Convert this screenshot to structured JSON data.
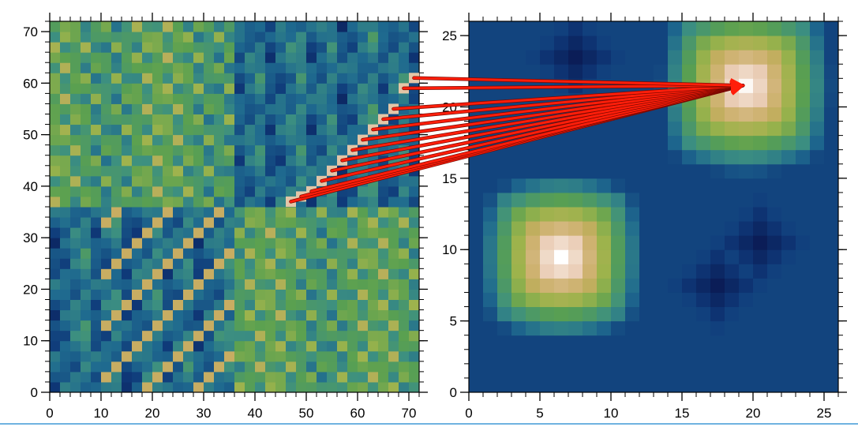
{
  "chart_data": [
    {
      "type": "heatmap",
      "title": "",
      "xlabel": "",
      "ylabel": "",
      "xlim": [
        0,
        72
      ],
      "ylim": [
        0,
        72
      ],
      "x_ticks": [
        "0",
        "10",
        "20",
        "30",
        "40",
        "50",
        "60",
        "70"
      ],
      "y_ticks": [
        "0",
        "10",
        "20",
        "30",
        "40",
        "50",
        "60",
        "70"
      ],
      "x_minor_step": 2,
      "y_minor_step": 2,
      "cell_size": 2,
      "description_blocks": {
        "block_size": 36,
        "layout": "2x2 blocks; bottom-left and top-right are greenish (higher values), top-left and bottom-right are blue (lower values)"
      },
      "colormap": [
        "#0a1850",
        "#0f3a7a",
        "#1f6a8f",
        "#3d9080",
        "#5aa050",
        "#9cb34c",
        "#c8ad62",
        "#e8c9b0",
        "#ffffff"
      ],
      "highlight_cells": [
        {
          "x": 47,
          "y": 37
        },
        {
          "x": 49,
          "y": 38
        },
        {
          "x": 51,
          "y": 39
        },
        {
          "x": 53,
          "y": 41
        },
        {
          "x": 55,
          "y": 43
        },
        {
          "x": 57,
          "y": 45
        },
        {
          "x": 59,
          "y": 47
        },
        {
          "x": 61,
          "y": 49
        },
        {
          "x": 63,
          "y": 51
        },
        {
          "x": 65,
          "y": 53
        },
        {
          "x": 67,
          "y": 55
        },
        {
          "x": 69,
          "y": 59
        },
        {
          "x": 71,
          "y": 61
        }
      ]
    },
    {
      "type": "heatmap",
      "title": "",
      "xlabel": "",
      "ylabel": "",
      "xlim": [
        0,
        26
      ],
      "ylim": [
        0,
        26
      ],
      "x_ticks": [
        "0",
        "5",
        "10",
        "15",
        "20",
        "25"
      ],
      "y_ticks": [
        "0",
        "5",
        "10",
        "15",
        "20",
        "25"
      ],
      "x_minor_step": 1,
      "y_minor_step": 1,
      "cell_size": 1,
      "peaks": [
        {
          "x": 6.5,
          "y": 9.5,
          "value": 1.0,
          "spread": 5.5
        },
        {
          "x": 19.5,
          "y": 21.5,
          "value": 0.98,
          "spread": 5.8
        }
      ],
      "minima": [
        {
          "x": 7.5,
          "y": 23.5
        },
        {
          "x": 20.5,
          "y": 10.5
        },
        {
          "x": 17.5,
          "y": 7.5
        }
      ],
      "arrow_target": {
        "x": 19.5,
        "y": 21.5
      }
    }
  ],
  "arrows": {
    "color": "#ff1e0a",
    "count": 13
  }
}
